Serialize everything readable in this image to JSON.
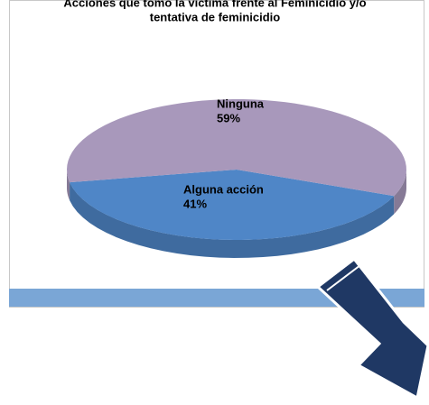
{
  "chart_data": {
    "type": "pie",
    "title": "Acciones que tomó la víctima frente al Feminicidio y/o",
    "subtitle": "tentativa de feminicidio",
    "categories": [
      "Ninguna",
      "Alguna acción"
    ],
    "values": [
      59,
      41
    ],
    "value_labels": [
      "59%",
      "41%"
    ],
    "colors": [
      "#a898bb",
      "#4f86c7"
    ]
  }
}
